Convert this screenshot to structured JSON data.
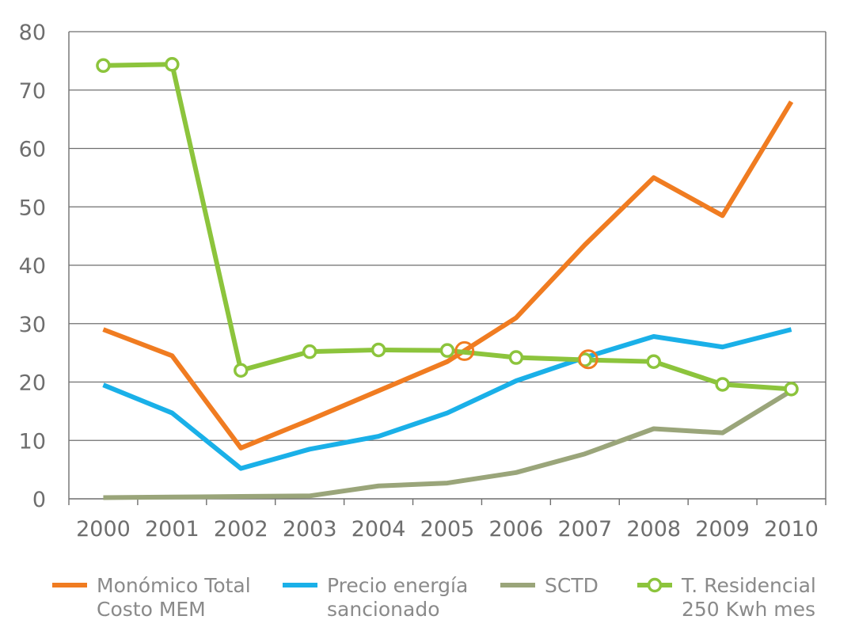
{
  "chart_data": {
    "type": "line",
    "x": [
      "2000",
      "2001",
      "2002",
      "2003",
      "2004",
      "2005",
      "2006",
      "2007",
      "2008",
      "2009",
      "2010"
    ],
    "ylim": [
      0,
      80
    ],
    "yticks": [
      "0",
      "10",
      "20",
      "30",
      "40",
      "50",
      "60",
      "70",
      "80"
    ],
    "grid": true,
    "legend_position": "bottom",
    "series": [
      {
        "name": "Monómico Total Costo MEM",
        "legend_lines": [
          "Monómico Total",
          "Costo MEM"
        ],
        "color": "#f07c21",
        "values": [
          29,
          24.5,
          8.7,
          13.5,
          18.5,
          23.5,
          31,
          43.5,
          55,
          48.5,
          68
        ]
      },
      {
        "name": "Precio energía sancionado",
        "legend_lines": [
          "Precio energía",
          "sancionado"
        ],
        "color": "#1ab0e8",
        "values": [
          19.5,
          14.7,
          5.2,
          8.5,
          10.7,
          14.7,
          20.2,
          24.2,
          27.8,
          26,
          29
        ]
      },
      {
        "name": "SCTD",
        "legend_lines": [
          "SCTD"
        ],
        "color": "#9aa57a",
        "values": [
          0.2,
          0.3,
          0.4,
          0.5,
          2.2,
          2.7,
          4.5,
          7.7,
          12,
          11.3,
          18.5
        ]
      },
      {
        "name": "T. Residencial 250 Kwh mes",
        "legend_lines": [
          "T. Residencial",
          "250 Kwh mes"
        ],
        "color": "#8cc43c",
        "marker": "open-circle",
        "values": [
          74.2,
          74.4,
          22,
          25.2,
          25.5,
          25.4,
          24.2,
          23.8,
          23.5,
          19.6,
          18.8
        ]
      }
    ],
    "annotations": [
      {
        "type": "circle",
        "x": 5.25,
        "y": 25.3,
        "color": "#f07c21"
      },
      {
        "type": "circle",
        "x": 7.05,
        "y": 23.9,
        "color": "#f07c21"
      }
    ]
  }
}
